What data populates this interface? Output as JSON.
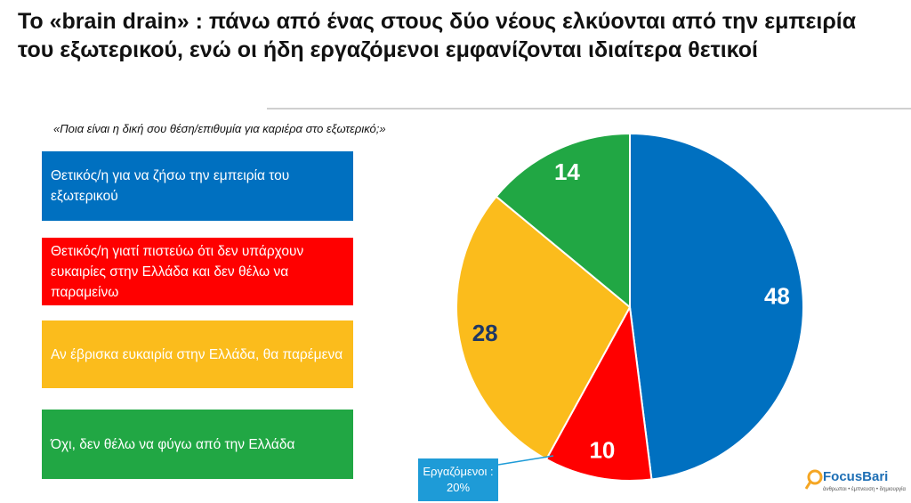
{
  "chart_data": {
    "type": "pie",
    "title": "Το «brain drain» : πάνω από ένας στους δύο νέους ελκύονται από την εμπειρία του εξωτερικού, ενώ οι ήδη εργαζόμενοι εμφανίζονται ιδιαίτερα θετικοί",
    "subtitle": "«Ποια είναι η δική σου θέση/επιθυμία για καριέρα στο εξωτερικό;»",
    "categories": [
      "Θετικός/η για να ζήσω την εμπειρία του εξωτερικού",
      "Θετικός/η γιατί πιστεύω ότι δεν υπάρχουν ευκαιρίες στην Ελλάδα και δεν θέλω να παραμείνω",
      "Αν έβρισκα ευκαιρία στην Ελλάδα, θα παρέμενα",
      "Όχι, δεν θέλω να φύγω από την Ελλάδα"
    ],
    "values": [
      48,
      10,
      28,
      14
    ],
    "colors": [
      "#0070c0",
      "#ff0000",
      "#fbbc1c",
      "#21a744"
    ],
    "label_colors": [
      "#ffffff",
      "#ffffff",
      "#1f3864",
      "#ffffff"
    ],
    "annotation": "Εργαζόμενοι : 20%"
  },
  "logo": {
    "name": "FocusBari",
    "tagline": "άνθρωποι • έμπνευση • δημιουργία"
  }
}
